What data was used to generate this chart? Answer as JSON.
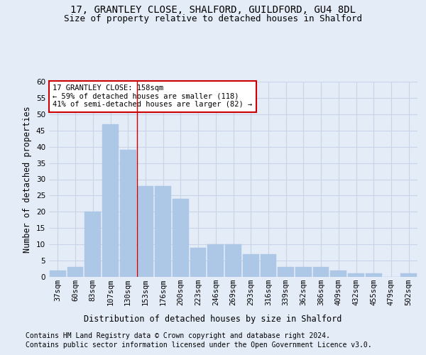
{
  "title_line1": "17, GRANTLEY CLOSE, SHALFORD, GUILDFORD, GU4 8DL",
  "title_line2": "Size of property relative to detached houses in Shalford",
  "xlabel": "Distribution of detached houses by size in Shalford",
  "ylabel": "Number of detached properties",
  "bar_labels": [
    "37sqm",
    "60sqm",
    "83sqm",
    "107sqm",
    "130sqm",
    "153sqm",
    "176sqm",
    "200sqm",
    "223sqm",
    "246sqm",
    "269sqm",
    "293sqm",
    "316sqm",
    "339sqm",
    "362sqm",
    "386sqm",
    "409sqm",
    "432sqm",
    "455sqm",
    "479sqm",
    "502sqm"
  ],
  "bar_values": [
    2,
    3,
    20,
    47,
    39,
    28,
    28,
    24,
    9,
    10,
    10,
    7,
    7,
    3,
    3,
    3,
    2,
    1,
    1,
    0,
    1
  ],
  "bar_color": "#adc8e6",
  "bar_edge_color": "#adc8e6",
  "grid_color": "#c8d4e8",
  "background_color": "#e4ecf7",
  "vline_x": 4.5,
  "vline_color": "#cc0000",
  "annotation_text": "17 GRANTLEY CLOSE: 158sqm\n← 59% of detached houses are smaller (118)\n41% of semi-detached houses are larger (82) →",
  "annotation_box_color": "white",
  "annotation_box_edge": "#cc0000",
  "ylim": [
    0,
    60
  ],
  "yticks": [
    0,
    5,
    10,
    15,
    20,
    25,
    30,
    35,
    40,
    45,
    50,
    55,
    60
  ],
  "footer_line1": "Contains HM Land Registry data © Crown copyright and database right 2024.",
  "footer_line2": "Contains public sector information licensed under the Open Government Licence v3.0.",
  "title_fontsize": 10,
  "subtitle_fontsize": 9,
  "axis_label_fontsize": 8.5,
  "tick_fontsize": 7.5,
  "annotation_fontsize": 7.5,
  "footer_fontsize": 7
}
